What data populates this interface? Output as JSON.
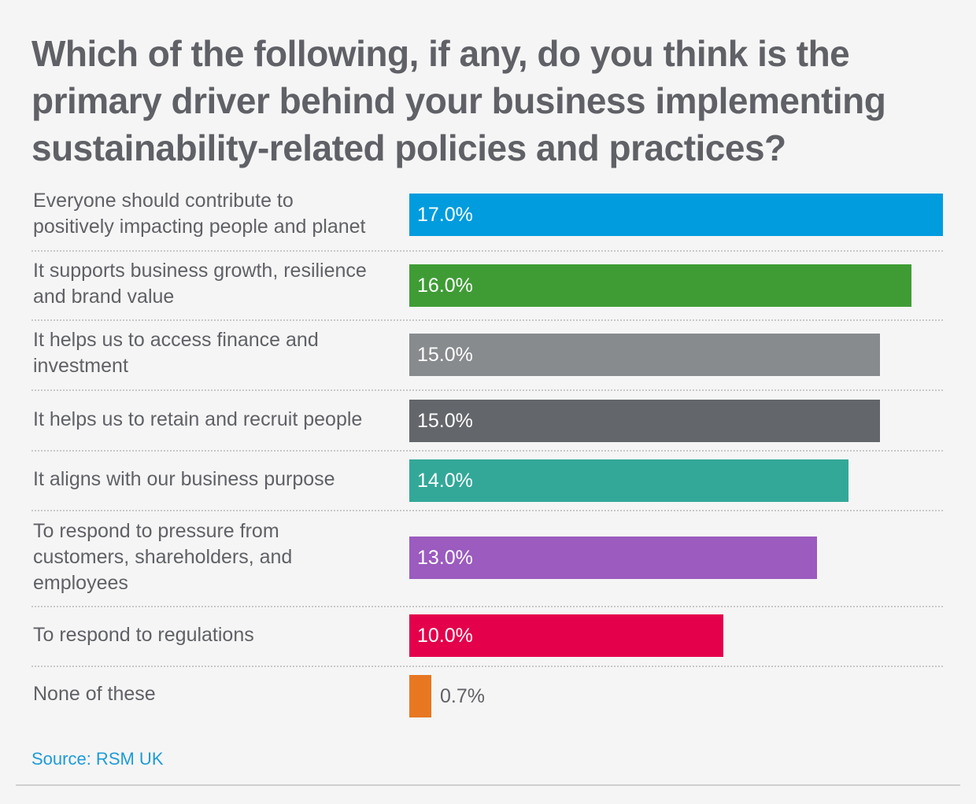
{
  "chart_data": {
    "type": "bar",
    "orientation": "horizontal",
    "title_lines": [
      "Which of the following, if any, do you think is the",
      "primary driver behind your business implementing",
      "sustainability-related policies and practices?"
    ],
    "categories": [
      [
        "Everyone should contribute to",
        "positively impacting people and planet"
      ],
      [
        "It supports business growth, resilience",
        "and brand value"
      ],
      [
        "It helps us to access finance and",
        "investment"
      ],
      [
        "It helps us to retain and recruit people"
      ],
      [
        "It aligns with our business purpose"
      ],
      [
        "To respond to pressure from",
        "customers, shareholders, and",
        "employees"
      ],
      [
        "To respond to regulations"
      ],
      [
        "None of these"
      ]
    ],
    "values": [
      17.0,
      16.0,
      15.0,
      15.0,
      14.0,
      13.0,
      10.0,
      0.7
    ],
    "value_labels": [
      "17.0%",
      "16.0%",
      "15.0%",
      "15.0%",
      "14.0%",
      "13.0%",
      "10.0%",
      "0.7%"
    ],
    "colors": [
      "#009cde",
      "#3f9c35",
      "#888b8d",
      "#63666a",
      "#33a899",
      "#9b5bbf",
      "#e4004b",
      "#e87722"
    ],
    "xlim": [
      0,
      17.0
    ],
    "source": "Source: RSM UK"
  }
}
